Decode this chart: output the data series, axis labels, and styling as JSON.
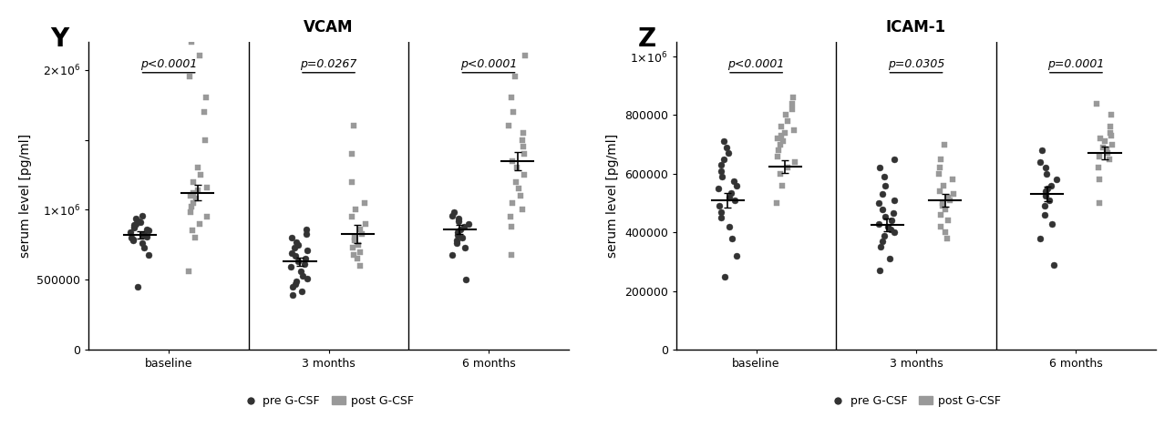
{
  "panel_Y": {
    "title": "VCAM",
    "panel_label": "Y",
    "ylabel": "serum level [pg/ml]",
    "ylim": [
      0,
      2200000
    ],
    "yticks": [
      0,
      500000,
      1000000,
      1500000,
      2000000
    ],
    "ytick_labels": [
      "0",
      "500000",
      "1×10⁶",
      "",
      "2×10⁶"
    ],
    "groups": [
      "baseline",
      "3 months",
      "6 months"
    ],
    "pvalues": [
      "p<0.0001",
      "p=0.0267",
      "p<0.0001"
    ],
    "pre_data": {
      "baseline": [
        450000,
        680000,
        730000,
        760000,
        780000,
        790000,
        800000,
        810000,
        820000,
        830000,
        840000,
        850000,
        860000,
        870000,
        880000,
        890000,
        900000,
        910000,
        920000,
        940000,
        960000
      ],
      "3 months": [
        390000,
        420000,
        450000,
        470000,
        490000,
        510000,
        530000,
        560000,
        590000,
        610000,
        630000,
        650000,
        670000,
        690000,
        710000,
        730000,
        750000,
        770000,
        800000,
        830000,
        860000
      ],
      "6 months": [
        500000,
        680000,
        730000,
        760000,
        780000,
        800000,
        820000,
        840000,
        860000,
        880000,
        900000,
        920000,
        940000,
        960000,
        980000
      ]
    },
    "post_data": {
      "baseline": [
        560000,
        800000,
        850000,
        900000,
        950000,
        980000,
        1020000,
        1050000,
        1080000,
        1100000,
        1120000,
        1140000,
        1160000,
        1200000,
        1250000,
        1300000,
        1500000,
        1700000,
        1800000,
        1950000,
        2100000,
        2200000
      ],
      "3 months": [
        600000,
        650000,
        680000,
        700000,
        730000,
        750000,
        780000,
        800000,
        830000,
        860000,
        900000,
        950000,
        1000000,
        1050000,
        1200000,
        1400000,
        1600000
      ],
      "6 months": [
        680000,
        880000,
        950000,
        1000000,
        1050000,
        1100000,
        1150000,
        1200000,
        1250000,
        1300000,
        1350000,
        1400000,
        1450000,
        1500000,
        1550000,
        1600000,
        1700000,
        1800000,
        1950000,
        2100000,
        2300000
      ]
    },
    "pre_mean": {
      "baseline": 820000,
      "3 months": 630000,
      "6 months": 860000
    },
    "pre_sem": {
      "baseline": 25000,
      "3 months": 30000,
      "6 months": 30000
    },
    "post_mean": {
      "baseline": 1120000,
      "3 months": 830000,
      "6 months": 1350000
    },
    "post_sem": {
      "baseline": 55000,
      "3 months": 65000,
      "6 months": 65000
    }
  },
  "panel_Z": {
    "title": "ICAM-1",
    "panel_label": "Z",
    "ylabel": "serum level [pg/ml]",
    "ylim": [
      0,
      1050000
    ],
    "yticks": [
      0,
      200000,
      400000,
      600000,
      800000,
      1000000
    ],
    "ytick_labels": [
      "0",
      "200000",
      "400000",
      "600000",
      "800000",
      "1×10⁶"
    ],
    "groups": [
      "baseline",
      "3 months",
      "6 months"
    ],
    "pvalues": [
      "p<0.0001",
      "p=0.0305",
      "p=0.0001"
    ],
    "pre_data": {
      "baseline": [
        250000,
        320000,
        380000,
        420000,
        450000,
        470000,
        490000,
        510000,
        520000,
        535000,
        550000,
        560000,
        575000,
        590000,
        610000,
        630000,
        650000,
        670000,
        690000,
        710000
      ],
      "3 months": [
        270000,
        310000,
        350000,
        370000,
        390000,
        400000,
        410000,
        420000,
        430000,
        440000,
        455000,
        465000,
        480000,
        500000,
        510000,
        530000,
        560000,
        590000,
        620000,
        650000
      ],
      "6 months": [
        290000,
        380000,
        430000,
        460000,
        490000,
        510000,
        525000,
        540000,
        550000,
        560000,
        580000,
        600000,
        620000,
        640000,
        680000
      ]
    },
    "post_data": {
      "baseline": [
        500000,
        560000,
        600000,
        620000,
        640000,
        660000,
        680000,
        700000,
        710000,
        720000,
        730000,
        740000,
        750000,
        760000,
        780000,
        800000,
        820000,
        840000,
        860000
      ],
      "3 months": [
        380000,
        400000,
        420000,
        440000,
        460000,
        480000,
        490000,
        500000,
        510000,
        520000,
        530000,
        540000,
        560000,
        580000,
        600000,
        620000,
        650000,
        700000
      ],
      "6 months": [
        500000,
        580000,
        620000,
        650000,
        660000,
        670000,
        680000,
        690000,
        700000,
        710000,
        720000,
        730000,
        740000,
        760000,
        800000,
        840000
      ]
    },
    "pre_mean": {
      "baseline": 510000,
      "3 months": 425000,
      "6 months": 530000
    },
    "pre_sem": {
      "baseline": 25000,
      "3 months": 22000,
      "6 months": 25000
    },
    "post_mean": {
      "baseline": 625000,
      "3 months": 510000,
      "6 months": 670000
    },
    "post_sem": {
      "baseline": 22000,
      "3 months": 22000,
      "6 months": 22000
    }
  },
  "pre_color": "#333333",
  "post_color": "#999999",
  "pre_marker": "o",
  "post_marker": "s",
  "marker_size": 5,
  "font_family": "Arial",
  "title_fontsize": 12,
  "label_fontsize": 10,
  "tick_fontsize": 9,
  "pval_fontsize": 9,
  "panel_label_fontsize": 20
}
